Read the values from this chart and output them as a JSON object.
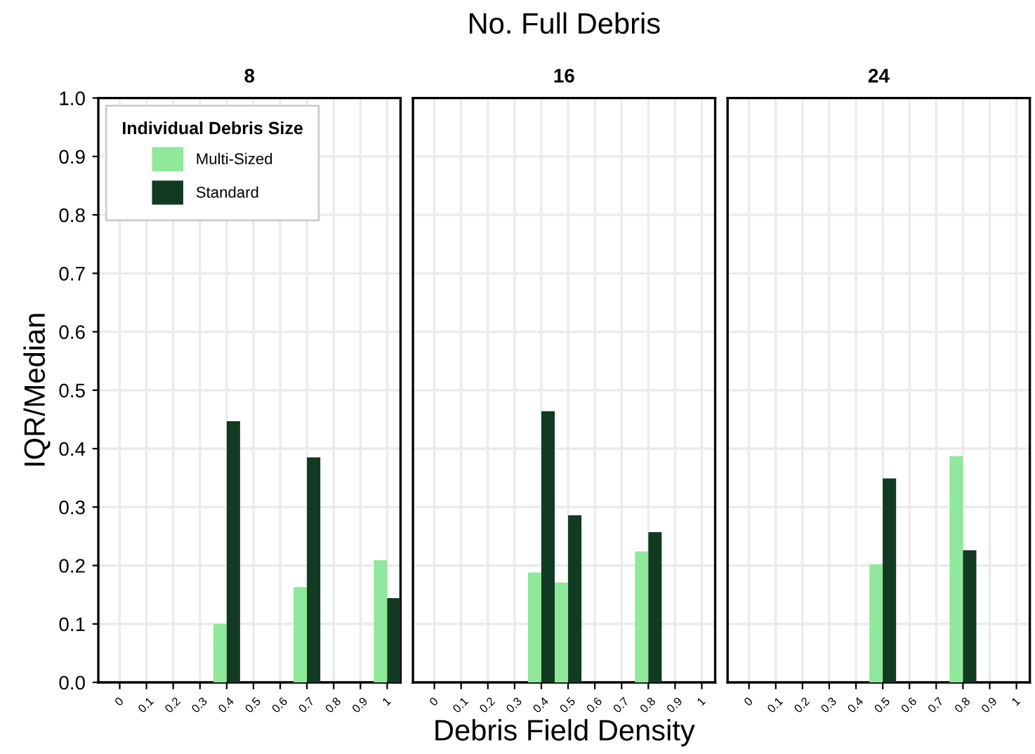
{
  "chart_data": [
    {
      "type": "bar",
      "title": "8",
      "ylabel": "IQR/Median",
      "legend": "top left",
      "legend_title": "Individual Debris Size",
      "grid": true,
      "xlim": [
        -0.08,
        1.05
      ],
      "ylim": [
        0,
        1.0
      ],
      "xticks": [
        0,
        0.1,
        0.2,
        0.3,
        0.4,
        0.5,
        0.6,
        0.7,
        0.8,
        0.9,
        1
      ],
      "yticks": [
        {
          "value": 0,
          "label": "0.0"
        },
        0.1,
        0.2,
        0.3,
        0.4,
        0.5,
        0.6,
        0.7,
        0.8,
        0.9,
        {
          "value": 1,
          "label": "1.0"
        }
      ],
      "series": [
        {
          "name": "Multi-Sized",
          "color": "#90e89a",
          "x": [
            0.4,
            0.7,
            1
          ],
          "values": [
            0.1,
            0.163,
            0.209
          ]
        },
        {
          "name": "Standard",
          "color": "#103a22",
          "x": [
            0.4,
            0.7,
            1
          ],
          "values": [
            0.447,
            0.385,
            0.144
          ]
        }
      ]
    },
    {
      "type": "bar",
      "title": "16",
      "xlabel": "Debris Field Density",
      "annotations": [
        "No. Full Debris"
      ],
      "grid": true,
      "tick_labels": "x",
      "xlim": [
        -0.08,
        1.05
      ],
      "ylim": [
        0,
        1.0
      ],
      "xticks": [
        0,
        0.1,
        0.2,
        0.3,
        0.4,
        0.5,
        0.6,
        0.7,
        0.8,
        0.9,
        1
      ],
      "yticks": [
        0.0,
        0.1,
        0.2,
        0.3,
        0.4,
        0.5,
        0.6,
        0.7,
        0.8,
        0.9,
        1.0
      ],
      "series": [
        {
          "color": "#90e89a",
          "x": [
            0.4,
            0.5,
            0.8
          ],
          "values": [
            0.188,
            0.171,
            0.224
          ]
        },
        {
          "color": "#103a22",
          "x": [
            0.4,
            0.5,
            0.8
          ],
          "values": [
            0.464,
            0.286,
            0.257
          ]
        }
      ]
    },
    {
      "type": "bar",
      "title": "24",
      "grid": true,
      "tick_labels": "x",
      "xlim": [
        -0.08,
        1.05
      ],
      "ylim": [
        0,
        1.0
      ],
      "xticks": [
        0,
        0.1,
        0.2,
        0.3,
        0.4,
        0.5,
        0.6,
        0.7,
        0.8,
        0.9,
        1
      ],
      "yticks": [
        0.0,
        0.1,
        0.2,
        0.3,
        0.4,
        0.5,
        0.6,
        0.7,
        0.8,
        0.9,
        1.0
      ],
      "series": [
        {
          "color": "#90e89a",
          "x": [
            0.5,
            0.8
          ],
          "values": [
            0.202,
            0.387
          ]
        },
        {
          "color": "#103a22",
          "x": [
            0.5,
            0.8
          ],
          "values": [
            0.349,
            0.226
          ]
        }
      ]
    }
  ]
}
